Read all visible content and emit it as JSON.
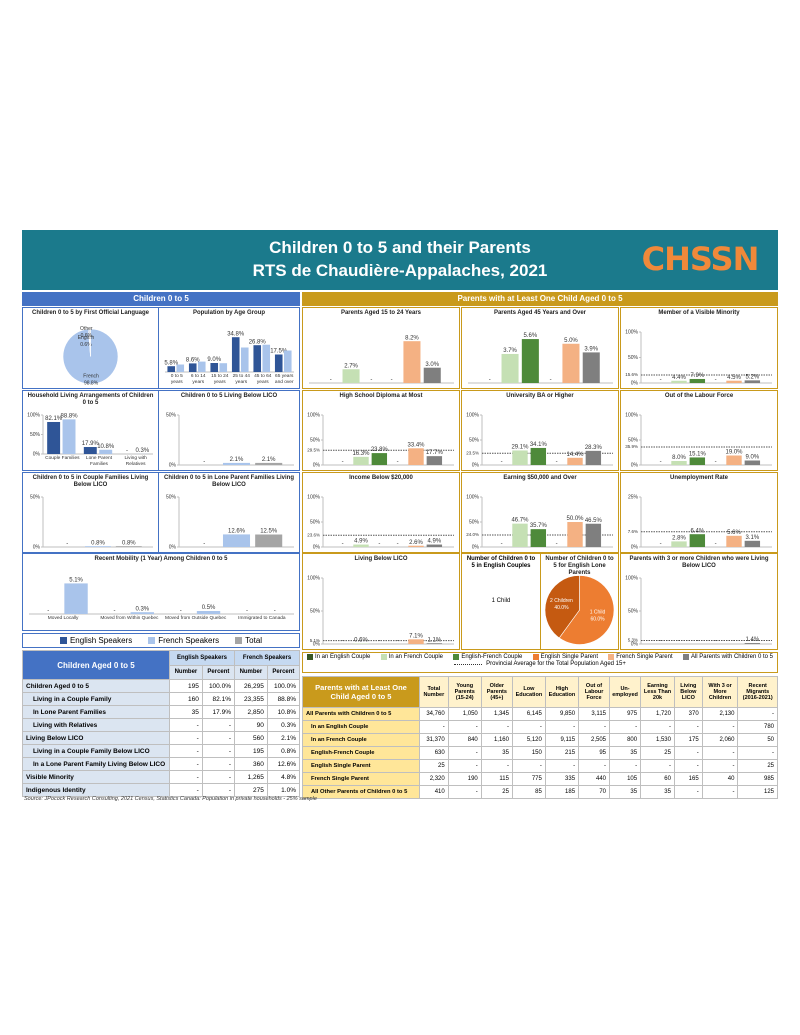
{
  "header": {
    "title_line1": "Children 0 to 5 and their Parents",
    "title_line2": "RTS de Chaudière-Appalaches, 2021",
    "logo": "CHSSN"
  },
  "left_panel_title": "Children 0 to 5",
  "right_panel_title": "Parents with at Least One Child Aged 0 to 5",
  "left_legend": [
    {
      "name": "English Speakers",
      "color": "#2f5597"
    },
    {
      "name": "French Speakers",
      "color": "#a9c4eb"
    },
    {
      "name": "Total",
      "color": "#a5a5a5"
    }
  ],
  "right_legend": {
    "series": [
      {
        "name": "In an English Couple",
        "color": "#375623"
      },
      {
        "name": "In an French Couple",
        "color": "#c5e0b4"
      },
      {
        "name": "English-French Couple",
        "color": "#4e8a3a"
      },
      {
        "name": "English Single Parent",
        "color": "#ed7d31"
      },
      {
        "name": "French Single Parent",
        "color": "#f4b183"
      },
      {
        "name": "All Parents with Children 0 to 5",
        "color": "#7f7f7f"
      }
    ],
    "average_label": "Provincial Average for the Total Population Aged 15+"
  },
  "chart_data": [
    {
      "type": "pie",
      "title": "Children 0 to 5 by First Official Language",
      "labels": [
        "French",
        "English",
        "Other"
      ],
      "values": [
        98.8,
        0.6,
        0.6
      ],
      "value_labels": [
        "98.8%",
        "0.6%",
        "0.6%"
      ],
      "colors": [
        "#a9c4eb",
        "#2f5597",
        "#d9d9d9"
      ]
    },
    {
      "type": "bar",
      "title": "Population by Age Group",
      "categories": [
        "0 to 5 years",
        "6 to 14 years",
        "15 to 24 years",
        "25 to 44 years",
        "45 to 64 years",
        "65 years and over"
      ],
      "ylim": [
        0,
        40
      ],
      "series": [
        {
          "values": [
            5.8,
            8.6,
            9.0,
            34.8,
            26.8,
            17.5
          ],
          "value_labels": [
            "5.8%",
            "8.6%",
            "9.0%",
            "34.8%",
            "26.8%",
            "17.5%"
          ]
        },
        {
          "values": [
            7.5,
            10.4,
            8.8,
            24.5,
            27.3,
            21.5
          ]
        }
      ]
    },
    {
      "type": "bar",
      "title": "Household Living Arrangements of Children 0 to 5",
      "categories": [
        "Couple Families",
        "Lone Parent Families",
        "Living with Relatives"
      ],
      "ylim": [
        0,
        100
      ],
      "yticks": [
        {
          "value": 0,
          "label": "0%"
        },
        {
          "value": 50,
          "label": "50%"
        },
        {
          "value": 100,
          "label": "100%"
        }
      ],
      "series": [
        {
          "values": [
            82.1,
            17.9,
            null
          ],
          "value_labels": [
            "82.1%",
            "17.9%",
            "-"
          ]
        },
        {
          "values": [
            88.8,
            10.8,
            0.3
          ],
          "value_labels": [
            "88.8%",
            "10.8%",
            "0.3%"
          ]
        }
      ]
    },
    {
      "type": "bar",
      "title": "Children 0 to 5 Living Below LICO",
      "ylim": [
        0,
        50
      ],
      "yticks": [
        {
          "value": 0,
          "label": "0%"
        },
        {
          "value": 50,
          "label": "50%"
        }
      ],
      "values": [
        null,
        2.1,
        2.1
      ],
      "value_labels": [
        "-",
        "2.1%",
        "2.1%"
      ]
    },
    {
      "type": "bar",
      "title": "Children 0 to 5 in Couple Families Living Below LICO",
      "ylim": [
        0,
        50
      ],
      "yticks": [
        {
          "value": 0,
          "label": "0%"
        },
        {
          "value": 50,
          "label": "50%"
        }
      ],
      "values": [
        null,
        0.8,
        0.8
      ],
      "value_labels": [
        "-",
        "0.8%",
        "0.8%"
      ]
    },
    {
      "type": "bar",
      "title": "Children 0 to 5 in Lone Parent Families Living Below LICO",
      "ylim": [
        0,
        50
      ],
      "yticks": [
        {
          "value": 0,
          "label": "0%"
        },
        {
          "value": 50,
          "label": "50%"
        }
      ],
      "values": [
        null,
        12.6,
        12.5
      ],
      "value_labels": [
        "-",
        "12.6%",
        "12.5%"
      ]
    },
    {
      "type": "bar",
      "title": "Recent Mobility (1 Year) Among Children 0 to 5",
      "categories": [
        "Moved Locally",
        "Moved from Within Quebec",
        "Moved from Outside Quebec",
        "Immigrated to Canada"
      ],
      "ylim": [
        0,
        6
      ],
      "series": [
        {
          "values": [
            null,
            null,
            null,
            null
          ],
          "value_labels": [
            "-",
            "-",
            "-",
            "-"
          ]
        },
        {
          "values": [
            5.1,
            0.3,
            0.5,
            null
          ],
          "value_labels": [
            "5.1%",
            "0.3%",
            "0.5%",
            "-"
          ]
        }
      ]
    },
    {
      "type": "bar",
      "title": "Parents Aged 15 to 24 Years",
      "ylim": [
        0,
        10
      ],
      "values": [
        null,
        2.7,
        null,
        null,
        8.2,
        3.0
      ],
      "value_labels": [
        "-",
        "2.7%",
        "-",
        "-",
        "8.2%",
        "3.0%"
      ]
    },
    {
      "type": "bar",
      "title": "Parents Aged 45 Years and Over",
      "ylim": [
        0,
        6.5
      ],
      "values": [
        null,
        3.7,
        5.6,
        null,
        5.0,
        3.9
      ],
      "value_labels": [
        "-",
        "3.7%",
        "5.6%",
        "-",
        "5.0%",
        "3.9%"
      ]
    },
    {
      "type": "bar",
      "title": "Member of a Visible Minority",
      "ylim": [
        0,
        100
      ],
      "yticks": [
        {
          "value": 0,
          "label": "0%"
        },
        {
          "value": 50,
          "label": "50%"
        },
        {
          "value": 100,
          "label": "100%"
        }
      ],
      "average": 15.6,
      "average_label": "15.6%",
      "values": [
        null,
        4.4,
        7.9,
        null,
        4.5,
        5.2
      ],
      "value_labels": [
        "-",
        "4.4%",
        "7.9%",
        "-",
        "4.5%",
        "5.2%"
      ]
    },
    {
      "type": "bar",
      "title": "High School Diploma at Most",
      "ylim": [
        0,
        100
      ],
      "yticks": [
        {
          "value": 0,
          "label": "0%"
        },
        {
          "value": 50,
          "label": "50%"
        },
        {
          "value": 100,
          "label": "100%"
        }
      ],
      "average": 29.5,
      "average_label": "29.5%",
      "values": [
        null,
        16.3,
        23.8,
        null,
        33.4,
        17.7
      ],
      "value_labels": [
        "-",
        "16.3%",
        "23.8%",
        "-",
        "33.4%",
        "17.7%"
      ]
    },
    {
      "type": "bar",
      "title": "University BA or Higher",
      "ylim": [
        0,
        100
      ],
      "yticks": [
        {
          "value": 0,
          "label": "0%"
        },
        {
          "value": 50,
          "label": "50%"
        },
        {
          "value": 100,
          "label": "100%"
        }
      ],
      "average": 23.5,
      "average_label": "23.5%",
      "values": [
        null,
        29.1,
        34.1,
        null,
        14.4,
        28.3
      ],
      "value_labels": [
        "-",
        "29.1%",
        "34.1%",
        "-",
        "14.4%",
        "28.3%"
      ]
    },
    {
      "type": "bar",
      "title": "Out of the Labour Force",
      "ylim": [
        0,
        100
      ],
      "yticks": [
        {
          "value": 0,
          "label": "0%"
        },
        {
          "value": 50,
          "label": "50%"
        },
        {
          "value": 100,
          "label": "100%"
        }
      ],
      "average": 35.9,
      "average_label": "35.9%",
      "values": [
        null,
        8.0,
        15.1,
        null,
        19.0,
        9.0
      ],
      "value_labels": [
        "-",
        "8.0%",
        "15.1%",
        "-",
        "19.0%",
        "9.0%"
      ]
    },
    {
      "type": "bar",
      "title": "Income Below $20,000",
      "ylim": [
        0,
        100
      ],
      "yticks": [
        {
          "value": 0,
          "label": "0%"
        },
        {
          "value": 50,
          "label": "50%"
        },
        {
          "value": 100,
          "label": "100%"
        }
      ],
      "average": 23.6,
      "average_label": "23.6%",
      "values": [
        null,
        4.9,
        null,
        null,
        2.6,
        4.9
      ],
      "value_labels": [
        "-",
        "4.9%",
        "-",
        "-",
        "2.6%",
        "4.9%"
      ]
    },
    {
      "type": "bar",
      "title": "Earning $50,000 and Over",
      "ylim": [
        0,
        100
      ],
      "yticks": [
        {
          "value": 0,
          "label": "0%"
        },
        {
          "value": 50,
          "label": "50%"
        },
        {
          "value": 100,
          "label": "100%"
        }
      ],
      "average": 24.0,
      "average_label": "24.0%",
      "values": [
        null,
        46.7,
        35.7,
        null,
        50.0,
        46.5
      ],
      "value_labels": [
        "-",
        "46.7%",
        "35.7%",
        "-",
        "50.0%",
        "46.5%"
      ]
    },
    {
      "type": "bar",
      "title": "Unemployment Rate",
      "ylim": [
        0,
        25
      ],
      "yticks": [
        {
          "value": 0,
          "label": "0%"
        },
        {
          "value": 25,
          "label": "25%"
        }
      ],
      "average": 7.6,
      "average_label": "7.6%",
      "values": [
        null,
        2.8,
        6.4,
        null,
        5.6,
        3.1
      ],
      "value_labels": [
        "-",
        "2.8%",
        "6.4%",
        "-",
        "5.6%",
        "3.1%"
      ]
    },
    {
      "type": "bar",
      "title": "Living Below LICO",
      "ylim": [
        0,
        100
      ],
      "yticks": [
        {
          "value": 0,
          "label": "0%"
        },
        {
          "value": 50,
          "label": "50%"
        },
        {
          "value": 100,
          "label": "100%"
        }
      ],
      "average": 5.1,
      "average_label": "5.1%",
      "values": [
        null,
        0.6,
        null,
        null,
        7.1,
        1.1
      ],
      "value_labels": [
        "-",
        "0.6%",
        "-",
        "-",
        "7.1%",
        "1.1%"
      ]
    },
    {
      "type": "pie",
      "title": "Number of Children 0 to 5 for English Lone Parents",
      "labels": [
        "1 Child",
        "2 Children"
      ],
      "values": [
        60,
        40
      ],
      "value_labels": [
        "60.0%",
        "40.0%"
      ],
      "colors": [
        "#ed7d31",
        "#c55a11"
      ]
    },
    {
      "type": "bar",
      "title": "Parents with 3 or more Children who were Living Below LICO",
      "ylim": [
        0,
        100
      ],
      "yticks": [
        {
          "value": 0,
          "label": "0%"
        },
        {
          "value": 50,
          "label": "50%"
        },
        {
          "value": 100,
          "label": "100%"
        }
      ],
      "average": 5.3,
      "average_label": "5.3%",
      "values": [
        null,
        null,
        null,
        null,
        null,
        1.4
      ],
      "value_labels": [
        "-",
        "-",
        "-",
        "-",
        "-",
        "1.4%"
      ]
    }
  ],
  "english_couples_children": {
    "title": "Number of Children 0 to 5 in English Couples",
    "text": "1 Child"
  },
  "children_table": {
    "title": "Children Aged 0 to 5",
    "group_headers": [
      "English Speakers",
      "French Speakers"
    ],
    "sub_headers": [
      "Number",
      "Percent",
      "Number",
      "Percent"
    ],
    "rows": [
      {
        "label": "Children Aged 0 to 5",
        "cells": [
          "195",
          "100.0%",
          "26,295",
          "100.0%"
        ]
      },
      {
        "label": "Living in a Couple Family",
        "cells": [
          "160",
          "82.1%",
          "23,355",
          "88.8%"
        ]
      },
      {
        "label": "In Lone Parent Families",
        "cells": [
          "35",
          "17.9%",
          "2,850",
          "10.8%"
        ]
      },
      {
        "label": "Living with Relatives",
        "cells": [
          "-",
          "-",
          "90",
          "0.3%"
        ]
      },
      {
        "label": "Living Below LICO",
        "cells": [
          "-",
          "-",
          "560",
          "2.1%"
        ]
      },
      {
        "label": "Living in a Couple Family Below LICO",
        "cells": [
          "-",
          "-",
          "195",
          "0.8%"
        ]
      },
      {
        "label": "In a Lone Parent Family Living Below LICO",
        "cells": [
          "-",
          "-",
          "360",
          "12.6%"
        ]
      },
      {
        "label": "Visible Minority",
        "cells": [
          "-",
          "-",
          "1,265",
          "4.8%"
        ]
      },
      {
        "label": "Indigenous Identity",
        "cells": [
          "-",
          "-",
          "275",
          "1.0%"
        ]
      }
    ]
  },
  "parents_table": {
    "title": "Parents with at Least One Child Aged 0 to 5",
    "columns": [
      "Total Number",
      "Young Parents (15-24)",
      "Older Parents (45+)",
      "Low Education",
      "High Education",
      "Out of Labour Force",
      "Un-employed",
      "Earning Less Than 20k",
      "Living Below LICO",
      "With 3 or More Children",
      "Recent Migrants (2016-2021)"
    ],
    "rows": [
      {
        "label": "All Parents with Children 0 to 5",
        "cells": [
          "34,760",
          "1,050",
          "1,345",
          "6,145",
          "9,850",
          "3,115",
          "975",
          "1,720",
          "370",
          "2,130",
          "-"
        ]
      },
      {
        "label": "In an English Couple",
        "cells": [
          "-",
          "-",
          "-",
          "-",
          "-",
          "-",
          "-",
          "-",
          "-",
          "-",
          "780"
        ]
      },
      {
        "label": "In an French Couple",
        "cells": [
          "31,370",
          "840",
          "1,160",
          "5,120",
          "9,115",
          "2,505",
          "800",
          "1,530",
          "175",
          "2,060",
          "50"
        ]
      },
      {
        "label": "English-French Couple",
        "cells": [
          "630",
          "-",
          "35",
          "150",
          "215",
          "95",
          "35",
          "25",
          "-",
          "-",
          "-"
        ]
      },
      {
        "label": "English Single Parent",
        "cells": [
          "25",
          "-",
          "-",
          "-",
          "-",
          "-",
          "-",
          "-",
          "-",
          "-",
          "25"
        ]
      },
      {
        "label": "French Single Parent",
        "cells": [
          "2,320",
          "190",
          "115",
          "775",
          "335",
          "440",
          "105",
          "60",
          "165",
          "40",
          "985"
        ]
      },
      {
        "label": "All Other Parents of Children 0 to 5",
        "cells": [
          "410",
          "-",
          "25",
          "85",
          "185",
          "70",
          "35",
          "35",
          "-",
          "-",
          "125"
        ]
      }
    ]
  },
  "source": "Source: JPocock Research Consulting, 2021 Census, Statistics Canada: Population in private households - 25% sample"
}
